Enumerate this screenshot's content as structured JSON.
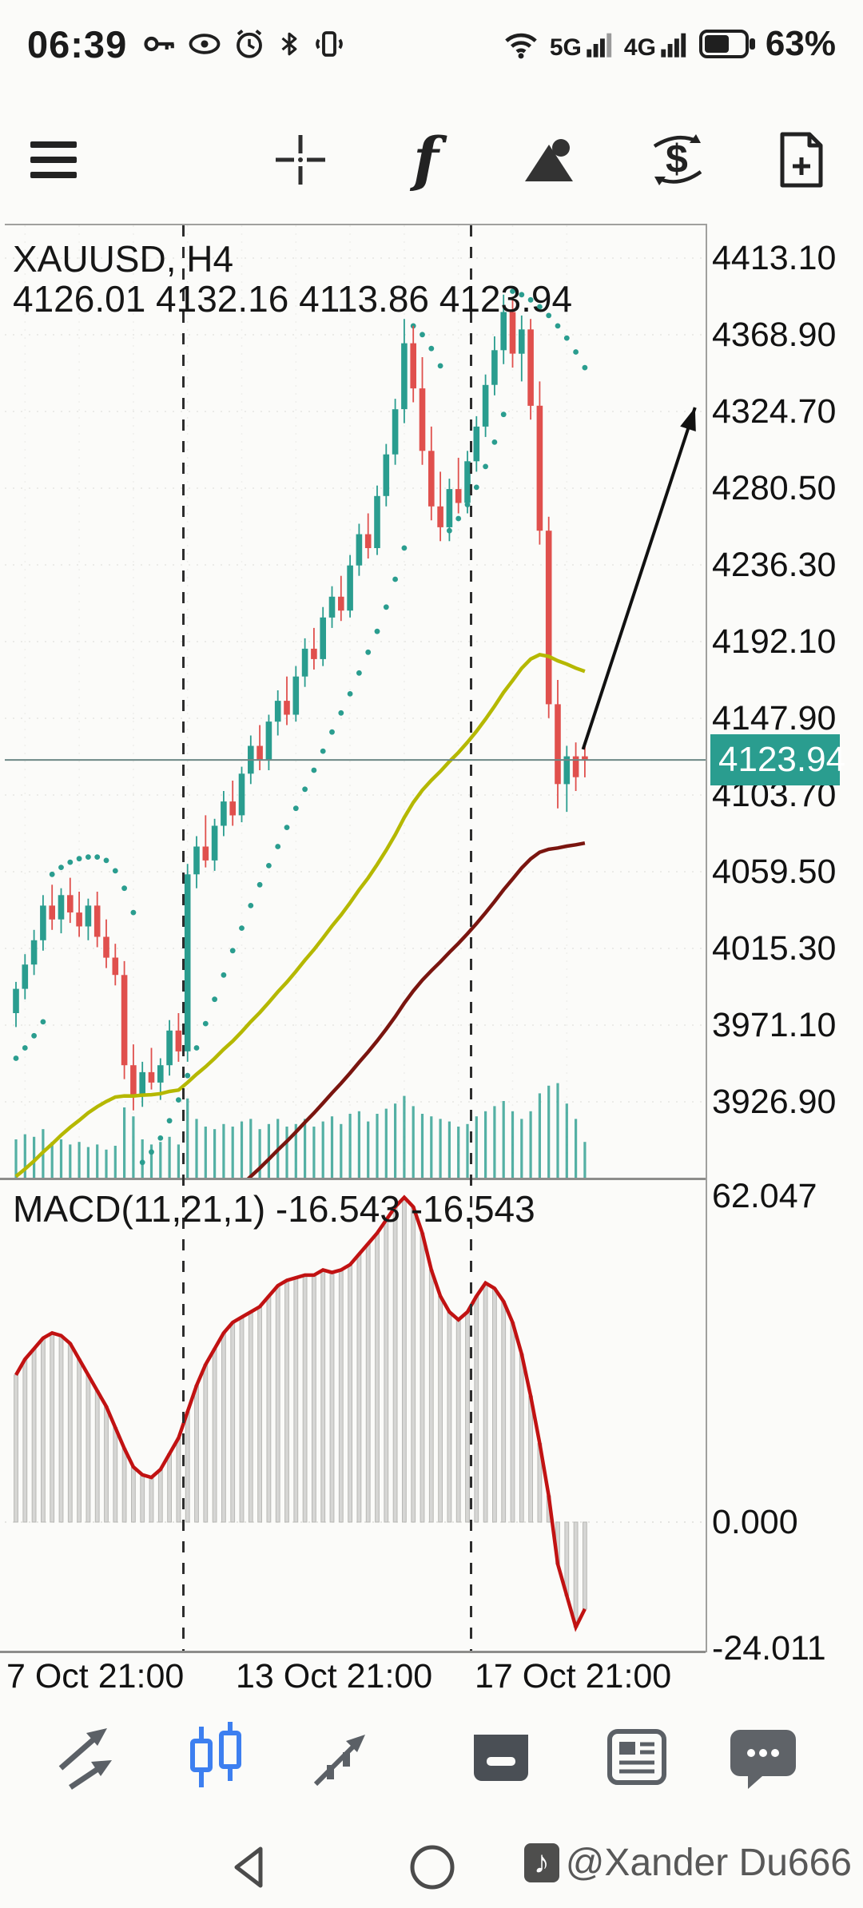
{
  "status_bar": {
    "time": "06:39",
    "net_a": "5G",
    "net_b": "4G",
    "battery_pct": "63%",
    "icons": [
      "key",
      "eye",
      "alarm",
      "bluetooth",
      "vibrate",
      "wifi",
      "signal-bars",
      "battery"
    ]
  },
  "toolbar": {
    "icons": [
      "menu",
      "crosshair",
      "indicator-f",
      "objects",
      "currency-exchange",
      "new-order"
    ]
  },
  "chart_data": {
    "type": "candlestick",
    "title": "XAUUSD, H4",
    "ohlc_line": "4126.01 4132.16 4113.86 4123.94",
    "last_ohlc": {
      "open": 4126.01,
      "high": 4132.16,
      "low": 4113.86,
      "close": 4123.94
    },
    "current_price": 4123.94,
    "current_price_label": "4123.94",
    "price_ticks": [
      "4413.10",
      "4368.90",
      "4324.70",
      "4280.50",
      "4236.30",
      "4192.10",
      "4147.90",
      "4103.70",
      "4059.50",
      "4015.30",
      "3971.10",
      "3926.90"
    ],
    "time_ticks": [
      "7 Oct 21:00",
      "13 Oct 21:00",
      "17 Oct 21:00"
    ],
    "colors": {
      "bull": "#2a9d8f",
      "bear": "#e0504d",
      "sar": "#2a9d8f",
      "ma_fast": "#b5b800",
      "ma_slow": "#7a150f",
      "price_line": "#6d8886",
      "badge_bg": "#2a9d8f",
      "macd_line": "#c11212",
      "macd_hist": "#d6d6d4",
      "volume": "#2a9d8f",
      "arrow": "#111111"
    },
    "candles": [
      [
        3978,
        3996,
        3970,
        3992
      ],
      [
        3992,
        4012,
        3986,
        4006
      ],
      [
        4006,
        4026,
        4000,
        4020
      ],
      [
        4020,
        4046,
        4014,
        4040
      ],
      [
        4040,
        4052,
        4026,
        4032
      ],
      [
        4032,
        4050,
        4024,
        4046
      ],
      [
        4046,
        4056,
        4030,
        4036
      ],
      [
        4036,
        4048,
        4022,
        4028
      ],
      [
        4028,
        4044,
        4020,
        4040
      ],
      [
        4040,
        4048,
        4016,
        4022
      ],
      [
        4022,
        4032,
        4004,
        4010
      ],
      [
        4010,
        4018,
        3994,
        4000
      ],
      [
        4000,
        4008,
        3940,
        3948
      ],
      [
        3948,
        3960,
        3922,
        3930
      ],
      [
        3930,
        3950,
        3924,
        3944
      ],
      [
        3944,
        3958,
        3934,
        3938
      ],
      [
        3938,
        3952,
        3928,
        3948
      ],
      [
        3948,
        3974,
        3942,
        3968
      ],
      [
        3968,
        3978,
        3950,
        3956
      ],
      [
        3956,
        4064,
        3950,
        4058
      ],
      [
        4058,
        4080,
        4050,
        4074
      ],
      [
        4074,
        4092,
        4062,
        4066
      ],
      [
        4066,
        4090,
        4060,
        4086
      ],
      [
        4086,
        4106,
        4080,
        4100
      ],
      [
        4100,
        4112,
        4086,
        4092
      ],
      [
        4092,
        4120,
        4088,
        4116
      ],
      [
        4116,
        4138,
        4110,
        4132
      ],
      [
        4132,
        4144,
        4118,
        4124
      ],
      [
        4124,
        4150,
        4118,
        4146
      ],
      [
        4146,
        4164,
        4138,
        4158
      ],
      [
        4158,
        4172,
        4144,
        4150
      ],
      [
        4150,
        4178,
        4146,
        4172
      ],
      [
        4172,
        4194,
        4166,
        4188
      ],
      [
        4188,
        4200,
        4176,
        4182
      ],
      [
        4182,
        4212,
        4178,
        4206
      ],
      [
        4206,
        4224,
        4200,
        4218
      ],
      [
        4218,
        4230,
        4204,
        4210
      ],
      [
        4210,
        4242,
        4206,
        4236
      ],
      [
        4236,
        4260,
        4230,
        4254
      ],
      [
        4254,
        4266,
        4240,
        4246
      ],
      [
        4246,
        4282,
        4242,
        4276
      ],
      [
        4276,
        4306,
        4270,
        4300
      ],
      [
        4300,
        4332,
        4294,
        4326
      ],
      [
        4326,
        4378,
        4318,
        4364
      ],
      [
        4364,
        4374,
        4330,
        4338
      ],
      [
        4338,
        4356,
        4294,
        4302
      ],
      [
        4302,
        4316,
        4262,
        4270
      ],
      [
        4270,
        4290,
        4250,
        4258
      ],
      [
        4258,
        4286,
        4250,
        4280
      ],
      [
        4280,
        4298,
        4266,
        4272
      ],
      [
        4272,
        4302,
        4266,
        4296
      ],
      [
        4296,
        4322,
        4290,
        4316
      ],
      [
        4316,
        4346,
        4310,
        4340
      ],
      [
        4340,
        4368,
        4334,
        4360
      ],
      [
        4360,
        4392,
        4352,
        4382
      ],
      [
        4382,
        4390,
        4350,
        4358
      ],
      [
        4358,
        4380,
        4342,
        4372
      ],
      [
        4372,
        4378,
        4320,
        4328
      ],
      [
        4328,
        4342,
        4248,
        4256
      ],
      [
        4256,
        4264,
        4148,
        4156
      ],
      [
        4156,
        4170,
        4096,
        4110
      ],
      [
        4110,
        4132,
        4094,
        4126
      ],
      [
        4126,
        4134,
        4106,
        4114
      ],
      [
        4126.01,
        4132.16,
        4113.86,
        4123.94
      ]
    ],
    "sar": [
      3952,
      3958,
      3965,
      3973,
      4058,
      4062,
      4065,
      4067,
      4068,
      4068,
      4066,
      4060,
      4050,
      4036,
      3892,
      3898,
      3906,
      3916,
      3928,
      3942,
      3958,
      3972,
      3986,
      4000,
      4014,
      4027,
      4040,
      4052,
      4063,
      4074,
      4085,
      4096,
      4107,
      4118,
      4129,
      4140,
      4151,
      4162,
      4174,
      4186,
      4198,
      4212,
      4228,
      4246,
      4374,
      4369,
      4361,
      4351,
      4256,
      4263,
      4271,
      4281,
      4293,
      4307,
      4323,
      4394,
      4392,
      4389,
      4385,
      4380,
      4374,
      4367,
      4359,
      4350
    ],
    "volume": [
      30,
      34,
      32,
      38,
      28,
      30,
      26,
      28,
      24,
      26,
      22,
      25,
      55,
      48,
      30,
      26,
      28,
      32,
      26,
      62,
      46,
      40,
      38,
      42,
      40,
      44,
      46,
      38,
      42,
      46,
      40,
      42,
      46,
      40,
      44,
      48,
      42,
      50,
      52,
      44,
      50,
      54,
      58,
      64,
      56,
      50,
      48,
      46,
      44,
      40,
      42,
      48,
      52,
      56,
      60,
      52,
      46,
      52,
      66,
      72,
      74,
      58,
      46,
      28
    ],
    "ma_fast": {
      "alpha": 0.035,
      "seed": 3880
    },
    "ma_slow": {
      "alpha": 0.02,
      "seed": 3780
    },
    "trend_arrow": {
      "from_bar": 62.8,
      "from_price": 4130,
      "to_bar": 75.2,
      "to_price": 4327
    },
    "macd": {
      "label": "MACD(11,21,1) -16.543 -16.543",
      "params": "11,21,1",
      "value": -16.543,
      "signal": -16.543,
      "axis_ticks": [
        "62.047",
        "0.000",
        "-24.011"
      ],
      "values": [
        28,
        31,
        33,
        35,
        36,
        35.5,
        34,
        31,
        28,
        25,
        22,
        18,
        14,
        10.5,
        9,
        8.5,
        10,
        13,
        16,
        21,
        26,
        30,
        33,
        36,
        38,
        39,
        40,
        41,
        43,
        45,
        46,
        46.5,
        47,
        47,
        48,
        47.5,
        48,
        49,
        51,
        53,
        55,
        57.5,
        60,
        61.8,
        60,
        55,
        48,
        43,
        40,
        38.5,
        40,
        43,
        45.5,
        44.5,
        42,
        38,
        32,
        24,
        15,
        5,
        -8,
        -14,
        -20,
        -16.543
      ]
    }
  },
  "bottom_toolbar": {
    "items": [
      "trade",
      "charts",
      "trends",
      "trade-tray",
      "news",
      "messages"
    ],
    "active": "charts",
    "active_color": "#3d7ff0"
  },
  "nav": {
    "watermark_prefix": "♪",
    "watermark": "@Xander Du666"
  }
}
